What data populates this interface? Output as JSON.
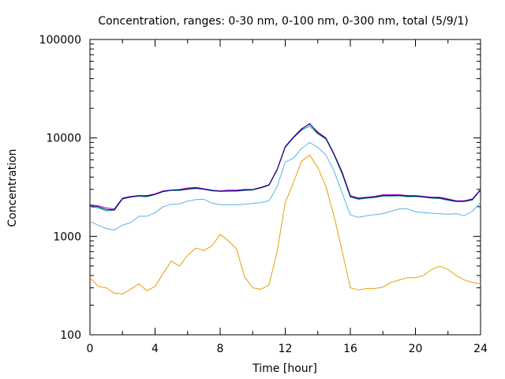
{
  "chart_data": {
    "type": "line",
    "title": "Concentration, ranges: 0-30 nm, 0-100 nm, 0-300 nm, total (5/9/1)",
    "xlabel": "Time [hour]",
    "ylabel": "Concentration",
    "xlim": [
      0,
      24
    ],
    "ylim": [
      100,
      100000
    ],
    "yscale": "log",
    "grid": false,
    "legend": "none",
    "x_ticks": [
      "0",
      "4",
      "8",
      "12",
      "16",
      "20",
      "24"
    ],
    "y_ticks": [
      "100",
      "1000",
      "10000",
      "100000"
    ],
    "x": [
      0,
      0.5,
      1,
      1.5,
      2,
      2.5,
      3,
      3.5,
      4,
      4.5,
      5,
      5.5,
      6,
      6.5,
      7,
      7.5,
      8,
      8.5,
      9,
      9.5,
      10,
      10.5,
      11,
      11.5,
      12,
      12.5,
      13,
      13.5,
      14,
      14.5,
      15,
      15.5,
      16,
      16.5,
      17,
      17.5,
      18,
      18.5,
      19,
      19.5,
      20,
      20.5,
      21,
      21.5,
      22,
      22.5,
      23,
      23.5,
      24
    ],
    "series": [
      {
        "color": "#e6a000",
        "values": [
          380,
          310,
          300,
          265,
          260,
          290,
          330,
          280,
          310,
          420,
          560,
          500,
          640,
          760,
          720,
          800,
          1050,
          900,
          750,
          390,
          300,
          290,
          320,
          700,
          2200,
          3500,
          5800,
          6700,
          5000,
          3200,
          1600,
          700,
          300,
          285,
          295,
          295,
          305,
          340,
          360,
          380,
          380,
          400,
          460,
          500,
          460,
          400,
          360,
          340,
          330
        ]
      },
      {
        "color": "#56b4e9",
        "values": [
          1420,
          1300,
          1200,
          1160,
          1300,
          1380,
          1600,
          1600,
          1740,
          2000,
          2120,
          2140,
          2280,
          2360,
          2380,
          2180,
          2100,
          2100,
          2100,
          2120,
          2160,
          2200,
          2300,
          3200,
          5700,
          6200,
          7800,
          9000,
          8000,
          6700,
          4600,
          2750,
          1650,
          1560,
          1620,
          1660,
          1700,
          1800,
          1900,
          1900,
          1780,
          1740,
          1720,
          1700,
          1680,
          1700,
          1620,
          1800,
          2200
        ]
      },
      {
        "color": "#009e73",
        "values": [
          2000,
          1950,
          1820,
          1840,
          2400,
          2500,
          2560,
          2520,
          2660,
          2840,
          2920,
          2920,
          3000,
          3060,
          3000,
          2900,
          2860,
          2880,
          2880,
          2920,
          2960,
          3100,
          3300,
          4700,
          8000,
          10000,
          12000,
          13200,
          11000,
          9700,
          6700,
          4300,
          2500,
          2380,
          2440,
          2480,
          2560,
          2560,
          2580,
          2520,
          2540,
          2500,
          2440,
          2420,
          2320,
          2250,
          2250,
          2340,
          2950
        ]
      },
      {
        "color": "#cc00cc",
        "values": [
          2100,
          2050,
          1950,
          1900,
          2450,
          2550,
          2600,
          2600,
          2700,
          2900,
          2950,
          3000,
          3100,
          3150,
          3050,
          2950,
          2900,
          2950,
          2950,
          3000,
          3000,
          3150,
          3350,
          4800,
          8200,
          10200,
          12400,
          13800,
          11500,
          10000,
          6900,
          4500,
          2600,
          2450,
          2500,
          2550,
          2650,
          2650,
          2650,
          2600,
          2600,
          2550,
          2500,
          2500,
          2400,
          2300,
          2300,
          2400,
          3000
        ]
      },
      {
        "color": "#000080",
        "values": [
          2050,
          2000,
          1880,
          1860,
          2420,
          2520,
          2580,
          2560,
          2680,
          2860,
          2940,
          2960,
          3040,
          3100,
          3020,
          2920,
          2880,
          2900,
          2900,
          2960,
          2980,
          3120,
          3320,
          4750,
          8100,
          10100,
          12200,
          14000,
          11200,
          9900,
          6800,
          4400,
          2550,
          2420,
          2470,
          2520,
          2600,
          2600,
          2620,
          2560,
          2570,
          2520,
          2470,
          2460,
          2360,
          2270,
          2270,
          2370,
          2970
        ]
      }
    ]
  }
}
